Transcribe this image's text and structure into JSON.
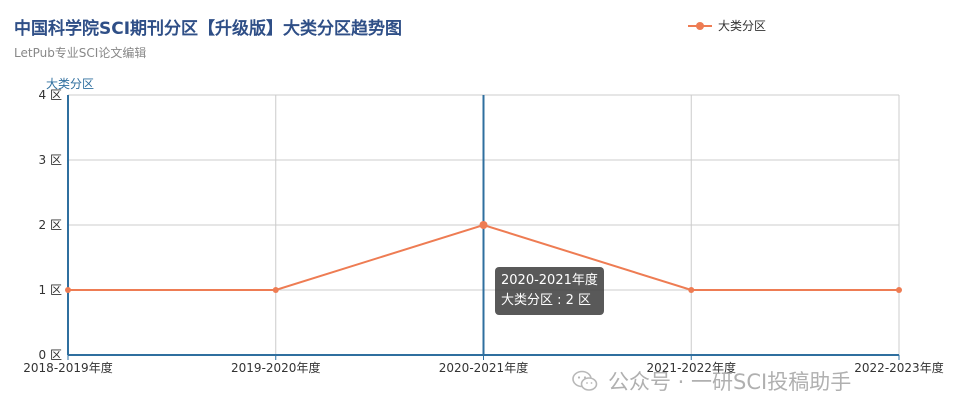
{
  "chart_data": {
    "type": "line",
    "title": "中国科学院SCI期刊分区【升级版】大类分区趋势图",
    "subtitle": "LetPub专业SCI论文编辑",
    "ylabel": "大类分区",
    "ylim": [
      0,
      4
    ],
    "y_ticks": [
      "0 区",
      "1 区",
      "2 区",
      "3 区",
      "4 区"
    ],
    "categories": [
      "2018-2019年度",
      "2019-2020年度",
      "2020-2021年度",
      "2021-2022年度",
      "2022-2023年度"
    ],
    "series": [
      {
        "name": "大类分区",
        "values": [
          1,
          1,
          2,
          1,
          1
        ],
        "color": "#ee7c53"
      }
    ],
    "grid": true,
    "legend": "top-right",
    "highlight_index": 2
  },
  "tooltip": {
    "line1": "2020-2021年度",
    "line2": "大类分区 : 2 区"
  },
  "watermark": {
    "text": "公众号 · 一研SCI投稿助手",
    "icon": "wechat-icon"
  },
  "colors": {
    "axis": "#2f6f9f",
    "grid": "#cccccc",
    "series": "#ee7c53",
    "title": "#2f4f87"
  }
}
